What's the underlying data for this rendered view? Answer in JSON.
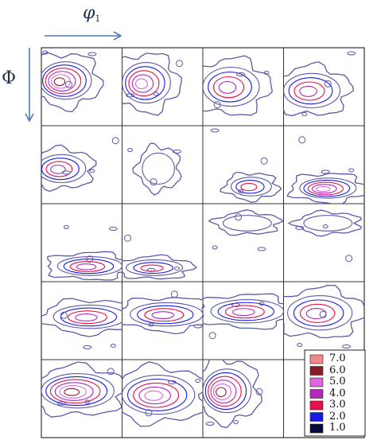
{
  "axes": {
    "horizontal_label": "φ",
    "horizontal_subscript": "1",
    "vertical_label": "Φ"
  },
  "grid": {
    "rows": 5,
    "columns": 4
  },
  "legend": {
    "levels": [
      {
        "value": "7.0",
        "color": "#f08a8a"
      },
      {
        "value": "6.0",
        "color": "#8b1c2a"
      },
      {
        "value": "5.0",
        "color": "#e066e0"
      },
      {
        "value": "4.0",
        "color": "#b02ab8"
      },
      {
        "value": "3.0",
        "color": "#e8104a"
      },
      {
        "value": "2.0",
        "color": "#1a1ae0"
      },
      {
        "value": "1.0",
        "color": "#0a0a3a"
      }
    ]
  },
  "colors": {
    "arrow": "#4a7ab5",
    "outer_contour": "#5a5aa8",
    "grid_line": "#333333"
  }
}
